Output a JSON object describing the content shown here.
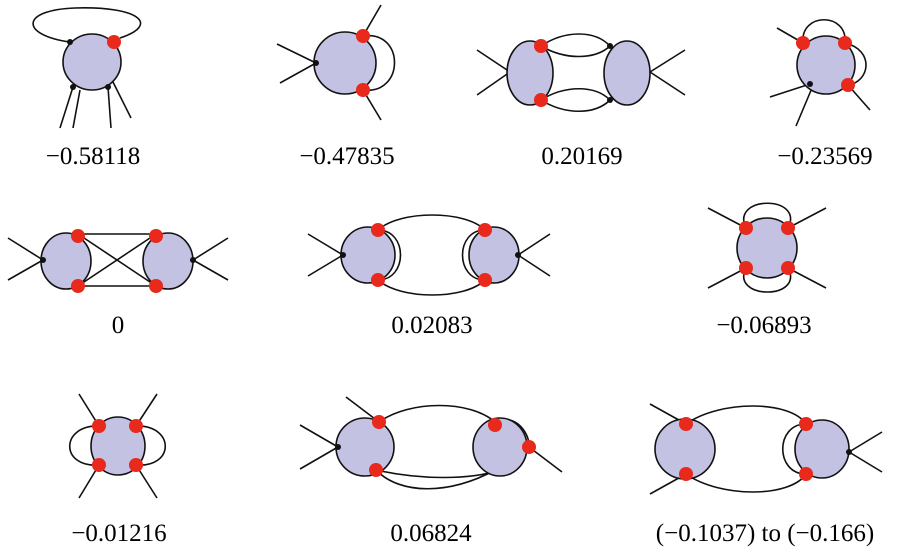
{
  "diagrams": [
    {
      "id": "d1",
      "label": "−0.58118"
    },
    {
      "id": "d2",
      "label": "−0.47835"
    },
    {
      "id": "d3",
      "label": "0.20169"
    },
    {
      "id": "d4",
      "label": "−0.23569"
    },
    {
      "id": "d5",
      "label": "0"
    },
    {
      "id": "d6",
      "label": "0.02083"
    },
    {
      "id": "d7",
      "label": "−0.06893"
    },
    {
      "id": "d8",
      "label": "−0.01216"
    },
    {
      "id": "d9",
      "label": "0.06824"
    },
    {
      "id": "d10",
      "label": "(−0.1037) to (−0.166)"
    }
  ],
  "colors": {
    "blob_fill": "#c3c2e3",
    "vertex_red": "#e8291c",
    "line": "#111111"
  }
}
